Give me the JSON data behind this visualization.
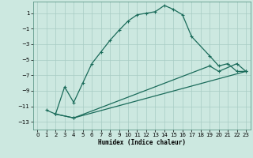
{
  "xlabel": "Humidex (Indice chaleur)",
  "xlim": [
    -0.5,
    23.5
  ],
  "ylim": [
    -14,
    2.5
  ],
  "yticks": [
    1,
    -1,
    -3,
    -5,
    -7,
    -9,
    -11,
    -13
  ],
  "xticks": [
    0,
    1,
    2,
    3,
    4,
    5,
    6,
    7,
    8,
    9,
    10,
    11,
    12,
    13,
    14,
    15,
    16,
    17,
    18,
    19,
    20,
    21,
    22,
    23
  ],
  "background_color": "#cce8e0",
  "grid_color": "#a8ccC4",
  "line_color": "#1a6b5a",
  "line1_x": [
    1,
    2,
    3,
    4,
    5,
    6,
    7,
    8,
    9,
    10,
    11,
    12,
    13,
    14,
    15,
    16,
    17,
    19,
    20,
    21,
    22,
    23
  ],
  "line1_y": [
    -11.5,
    -12.0,
    -8.5,
    -10.5,
    -8.0,
    -5.5,
    -4.0,
    -2.5,
    -1.2,
    0.0,
    0.8,
    1.0,
    1.2,
    2.0,
    1.5,
    0.8,
    -2.0,
    -4.5,
    -5.8,
    -5.5,
    -6.5,
    -6.5
  ],
  "line2_x": [
    2,
    4,
    23
  ],
  "line2_y": [
    -12.0,
    -12.5,
    -6.5
  ],
  "line3_x": [
    2,
    4,
    19,
    20,
    22,
    23
  ],
  "line3_y": [
    -12.0,
    -12.5,
    -5.8,
    -6.5,
    -5.5,
    -6.5
  ]
}
